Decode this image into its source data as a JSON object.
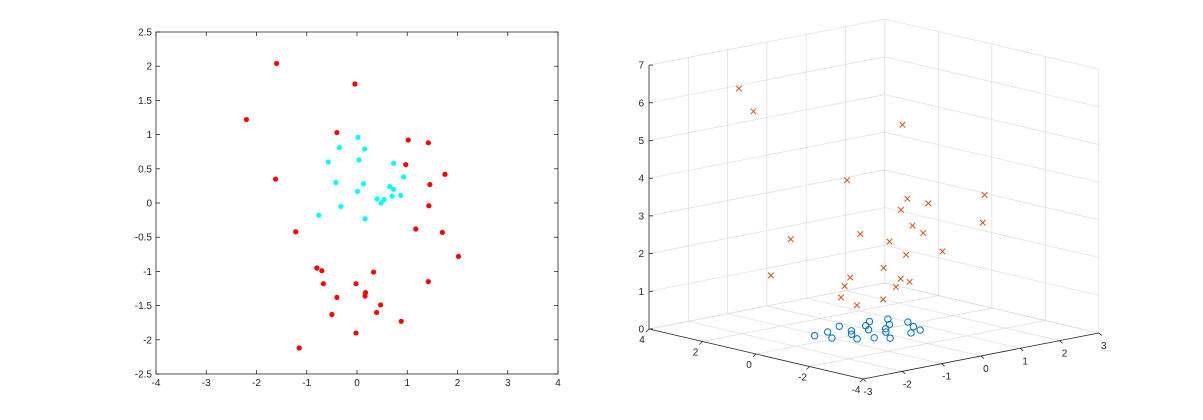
{
  "chart_data": [
    {
      "type": "scatter",
      "title": "",
      "xlabel": "",
      "ylabel": "",
      "xlim": [
        -4,
        4
      ],
      "ylim": [
        -2.5,
        2.5
      ],
      "xticks": [
        "-4",
        "-3",
        "-2",
        "-1",
        "0",
        "1",
        "2",
        "3",
        "4"
      ],
      "yticks": [
        "-2.5",
        "-2",
        "-1.5",
        "-1",
        "-0.5",
        "0",
        "0.5",
        "1",
        "1.5",
        "2",
        "2.5"
      ],
      "grid": false,
      "series": [
        {
          "color": "#ff0000",
          "marker": "filled-dot",
          "points": [
            [
              -1.6,
              2.04
            ],
            [
              -2.2,
              1.22
            ],
            [
              -0.04,
              1.74
            ],
            [
              -0.4,
              1.03
            ],
            [
              1.02,
              0.92
            ],
            [
              1.42,
              0.88
            ],
            [
              0.97,
              0.56
            ],
            [
              -1.62,
              0.35
            ],
            [
              1.75,
              0.42
            ],
            [
              1.45,
              0.27
            ],
            [
              1.43,
              -0.04
            ],
            [
              1.17,
              -0.38
            ],
            [
              -1.22,
              -0.42
            ],
            [
              1.7,
              -0.43
            ],
            [
              2.02,
              -0.78
            ],
            [
              -0.8,
              -0.95
            ],
            [
              -0.7,
              -0.99
            ],
            [
              0.33,
              -1.01
            ],
            [
              -0.67,
              -1.18
            ],
            [
              -0.02,
              -1.18
            ],
            [
              1.42,
              -1.15
            ],
            [
              0.17,
              -1.31
            ],
            [
              -0.4,
              -1.38
            ],
            [
              0.16,
              -1.36
            ],
            [
              0.47,
              -1.49
            ],
            [
              0.39,
              -1.6
            ],
            [
              -0.5,
              -1.63
            ],
            [
              0.88,
              -1.73
            ],
            [
              -0.02,
              -1.9
            ],
            [
              -1.15,
              -2.12
            ]
          ]
        },
        {
          "color": "#00ffff",
          "marker": "filled-dot",
          "points": [
            [
              0.02,
              0.96
            ],
            [
              -0.35,
              0.81
            ],
            [
              0.15,
              0.79
            ],
            [
              0.04,
              0.63
            ],
            [
              -0.57,
              0.6
            ],
            [
              0.73,
              0.58
            ],
            [
              0.93,
              0.38
            ],
            [
              -0.42,
              0.3
            ],
            [
              0.13,
              0.28
            ],
            [
              0.65,
              0.24
            ],
            [
              0.73,
              0.2
            ],
            [
              0.01,
              0.17
            ],
            [
              0.87,
              0.11
            ],
            [
              0.4,
              0.06
            ],
            [
              0.54,
              0.05
            ],
            [
              0.48,
              0.0
            ],
            [
              -0.32,
              -0.05
            ],
            [
              -0.76,
              -0.18
            ],
            [
              0.16,
              -0.23
            ],
            [
              0.7,
              0.1
            ]
          ]
        }
      ]
    },
    {
      "type": "scatter",
      "subtype": "3d-scatter",
      "title": "",
      "xlabel": "",
      "ylabel": "",
      "zlabel": "",
      "xlim": [
        -3,
        3
      ],
      "ylim": [
        -4,
        4
      ],
      "zlim": [
        0,
        7
      ],
      "xticks": [
        "-3",
        "-2",
        "-1",
        "0",
        "1",
        "2",
        "3"
      ],
      "yticks": [
        "-4",
        "-2",
        "0",
        "2",
        "4"
      ],
      "zticks": [
        "0",
        "1",
        "2",
        "3",
        "4",
        "5",
        "6",
        "7"
      ],
      "grid": true,
      "series": [
        {
          "color": "#d95319",
          "marker": "x",
          "points": [
            [
              -1.8,
              2.4,
              6.4
            ],
            [
              -1.5,
              2.3,
              5.75
            ],
            [
              -1.5,
              -1.2,
              4.5
            ],
            [
              1.0,
              0.4,
              5.2
            ],
            [
              2.0,
              -1.2,
              3.4
            ],
            [
              -1.3,
              1.2,
              2.5
            ],
            [
              -1.6,
              1.5,
              1.55
            ],
            [
              0.5,
              -1.3,
              3.5
            ],
            [
              1.2,
              1.4,
              1.2
            ],
            [
              1.8,
              0.8,
              2.1
            ],
            [
              1.0,
              -2.6,
              3.1
            ],
            [
              0.2,
              0.8,
              2.4
            ],
            [
              -0.4,
              0.3,
              1.45
            ],
            [
              1.5,
              1.0,
              1.55
            ],
            [
              0.0,
              -1.0,
              1.55
            ],
            [
              -0.2,
              0.8,
              1.1
            ],
            [
              1.2,
              -0.8,
              2.0
            ],
            [
              0.1,
              -0.2,
              0.85
            ],
            [
              0.5,
              -0.6,
              1.3
            ],
            [
              -0.7,
              0.2,
              1.0
            ],
            [
              1.3,
              0.9,
              2.8
            ],
            [
              0.6,
              0.3,
              2.2
            ],
            [
              1.6,
              1.1,
              3.0
            ],
            [
              0.3,
              -1.0,
              2.9
            ],
            [
              -0.5,
              -0.1,
              0.8
            ],
            [
              0.9,
              0.5,
              0.9
            ]
          ]
        },
        {
          "color": "#0072bd",
          "marker": "circle",
          "points": [
            [
              -0.7,
              0.7,
              0
            ],
            [
              -0.3,
              0.4,
              0
            ],
            [
              0.2,
              0.6,
              0
            ],
            [
              0.6,
              0.3,
              0
            ],
            [
              0.8,
              -0.3,
              0
            ],
            [
              0.4,
              -0.8,
              0
            ],
            [
              -0.2,
              -0.9,
              0
            ],
            [
              -0.7,
              -0.4,
              0
            ],
            [
              -1.0,
              0.1,
              0
            ],
            [
              0.1,
              -0.3,
              0
            ],
            [
              1.0,
              0.2,
              0
            ],
            [
              0.5,
              0.9,
              0
            ],
            [
              -0.4,
              -0.6,
              0
            ],
            [
              0.0,
              0.2,
              0
            ],
            [
              0.7,
              -0.7,
              0
            ],
            [
              -0.2,
              1.0,
              0
            ],
            [
              -1.1,
              0.6,
              0
            ],
            [
              0.3,
              0.0,
              0
            ],
            [
              -0.5,
              0.1,
              0
            ],
            [
              0.9,
              0.8,
              0
            ]
          ]
        }
      ]
    }
  ]
}
